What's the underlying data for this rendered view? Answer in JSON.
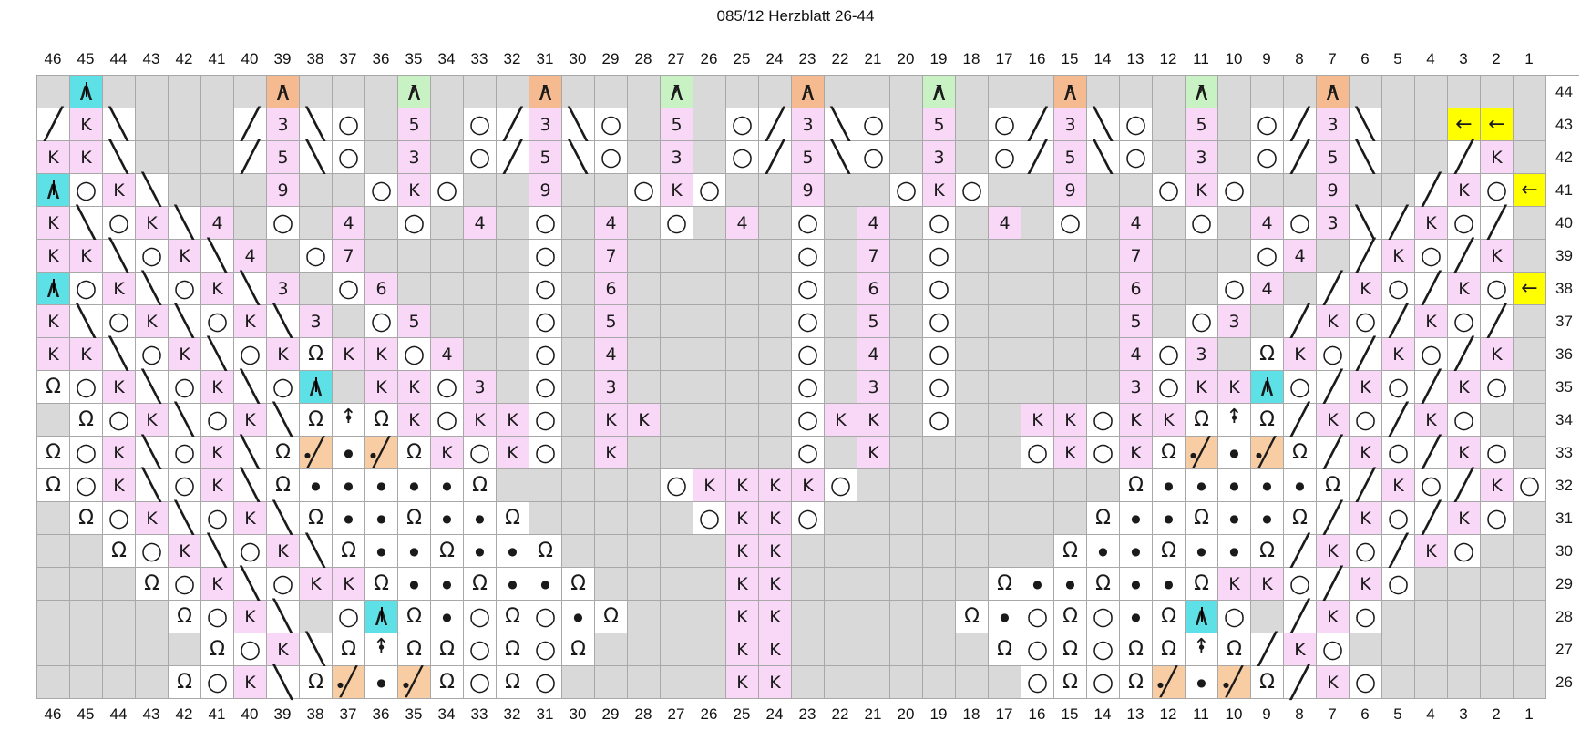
{
  "title": "085/12 Herzblatt 26-44",
  "chart": {
    "columns": [
      46,
      45,
      44,
      43,
      42,
      41,
      40,
      39,
      38,
      37,
      36,
      35,
      34,
      33,
      32,
      31,
      30,
      29,
      28,
      27,
      26,
      25,
      24,
      23,
      22,
      21,
      20,
      19,
      18,
      17,
      16,
      15,
      14,
      13,
      12,
      11,
      10,
      9,
      8,
      7,
      6,
      5,
      4,
      3,
      2,
      1
    ],
    "row_numbers": [
      44,
      43,
      42,
      41,
      40,
      39,
      38,
      37,
      36,
      35,
      34,
      33,
      32,
      31,
      30,
      29,
      28,
      27,
      26
    ],
    "colors": {
      "no_stitch_gray": "#d9d9d9",
      "stitch_pink": "#f8d8f6",
      "decrease_cyan": "#5ee1e6",
      "gather_peach": "#f5ba90",
      "combo_peach": "#f8cda4",
      "gather_green": "#c8f2c4",
      "marker_yellow": "#ffff00",
      "grid_line": "#a8a8a8",
      "symbol_black": "#1a1a1a"
    },
    "symbols": {
      ".": {
        "name": "no-stitch",
        "glyph": "",
        "color": "no_stitch_gray"
      },
      "K": {
        "name": "knit",
        "glyph": "K",
        "color": "stitch_pink"
      },
      "f": {
        "name": "decrease-right-slash",
        "glyph": "╱",
        "color": "white"
      },
      "b": {
        "name": "decrease-left-slash",
        "glyph": "╲",
        "color": "white"
      },
      "O": {
        "name": "yarn-over",
        "glyph": "○",
        "color": "white"
      },
      "W": {
        "name": "knit-twisted-omega",
        "glyph": "Ω",
        "color": "white"
      },
      "D": {
        "name": "purl-dot",
        "glyph": "●",
        "color": "white"
      },
      "A": {
        "name": "centered-double-decrease",
        "glyph": "/|\\",
        "color": "decrease_cyan"
      },
      "U": {
        "name": "lifted-stitch-arrow-dot",
        "glyph": "↑•",
        "color": "white"
      },
      "S": {
        "name": "dot-slash-combo",
        "glyph": "•╱",
        "color": "combo_peach"
      },
      "G5": {
        "name": "gather-5-stitches",
        "glyph": "/5\\",
        "color": "gather_peach"
      },
      "G7": {
        "name": "gather-7-stitches",
        "glyph": "/7\\",
        "color": "gather_green"
      },
      "L": {
        "name": "repeat-arrow-left",
        "glyph": "←",
        "color": "marker_yellow"
      },
      "3": {
        "name": "make-3",
        "glyph": "3",
        "color": "stitch_pink"
      },
      "4": {
        "name": "make-4",
        "glyph": "4",
        "color": "stitch_pink"
      },
      "5": {
        "name": "make-5",
        "glyph": "5",
        "color": "stitch_pink"
      },
      "6": {
        "name": "make-6",
        "glyph": "6",
        "color": "stitch_pink"
      },
      "7": {
        "name": "make-7",
        "glyph": "7",
        "color": "stitch_pink"
      },
      "9": {
        "name": "make-9",
        "glyph": "9",
        "color": "stitch_pink"
      }
    },
    "rows": [
      {
        "num": 44,
        "cells": [
          ".",
          "A",
          ".",
          ".",
          ".",
          ".",
          ".",
          "G5",
          ".",
          ".",
          ".",
          "G7",
          ".",
          ".",
          ".",
          "G5",
          ".",
          ".",
          ".",
          "G7",
          ".",
          ".",
          ".",
          "G5",
          ".",
          ".",
          ".",
          "G7",
          ".",
          ".",
          ".",
          "G5",
          ".",
          ".",
          ".",
          "G7",
          ".",
          ".",
          ".",
          "G5",
          ".",
          ".",
          ".",
          ".",
          ".",
          "."
        ]
      },
      {
        "num": 43,
        "cells": [
          "f",
          "K",
          "b",
          ".",
          ".",
          ".",
          "f",
          "3",
          "b",
          "O",
          ".",
          "5",
          ".",
          "O",
          "f",
          "3",
          "b",
          "O",
          ".",
          "5",
          ".",
          "O",
          "f",
          "3",
          "b",
          "O",
          ".",
          "5",
          ".",
          "O",
          "f",
          "3",
          "b",
          "O",
          ".",
          "5",
          ".",
          "O",
          "f",
          "3",
          "b",
          ".",
          ".",
          "L",
          "L",
          "."
        ]
      },
      {
        "num": 42,
        "cells": [
          "K",
          "K",
          "b",
          ".",
          ".",
          ".",
          "f",
          "5",
          "b",
          "O",
          ".",
          "3",
          ".",
          "O",
          "f",
          "5",
          "b",
          "O",
          ".",
          "3",
          ".",
          "O",
          "f",
          "5",
          "b",
          "O",
          ".",
          "3",
          ".",
          "O",
          "f",
          "5",
          "b",
          "O",
          ".",
          "3",
          ".",
          "O",
          "f",
          "5",
          "b",
          ".",
          ".",
          "f",
          "K",
          "."
        ]
      },
      {
        "num": 41,
        "cells": [
          "A",
          "O",
          "K",
          "b",
          ".",
          ".",
          ".",
          "9",
          ".",
          ".",
          "O",
          "K",
          "O",
          ".",
          ".",
          "9",
          ".",
          ".",
          "O",
          "K",
          "O",
          ".",
          ".",
          "9",
          ".",
          ".",
          "O",
          "K",
          "O",
          ".",
          ".",
          "9",
          ".",
          ".",
          "O",
          "K",
          "O",
          ".",
          ".",
          "9",
          ".",
          ".",
          "f",
          "K",
          "O",
          "L"
        ]
      },
      {
        "num": 40,
        "cells": [
          "K",
          "b",
          "O",
          "K",
          "b",
          "4",
          ".",
          "O",
          ".",
          "4",
          ".",
          "O",
          ".",
          "4",
          ".",
          "O",
          ".",
          "4",
          ".",
          "O",
          ".",
          "4",
          ".",
          "O",
          ".",
          "4",
          ".",
          "O",
          ".",
          "4",
          ".",
          "O",
          ".",
          "4",
          ".",
          "O",
          ".",
          "4",
          "O",
          "3",
          "b",
          "f",
          "K",
          "O",
          "f",
          "."
        ]
      },
      {
        "num": 39,
        "cells": [
          "K",
          "K",
          "b",
          "O",
          "K",
          "b",
          "4",
          ".",
          "O",
          "7",
          ".",
          ".",
          ".",
          ".",
          ".",
          "O",
          ".",
          "7",
          ".",
          ".",
          ".",
          ".",
          ".",
          "O",
          ".",
          "7",
          ".",
          "O",
          ".",
          ".",
          ".",
          ".",
          ".",
          "7",
          ".",
          ".",
          ".",
          "O",
          "4",
          ".",
          "f",
          "K",
          "O",
          "f",
          "K",
          "."
        ]
      },
      {
        "num": 38,
        "cells": [
          "A",
          "O",
          "K",
          "b",
          "O",
          "K",
          "b",
          "3",
          ".",
          "O",
          "6",
          ".",
          ".",
          ".",
          ".",
          "O",
          ".",
          "6",
          ".",
          ".",
          ".",
          ".",
          ".",
          "O",
          ".",
          "6",
          ".",
          "O",
          ".",
          ".",
          ".",
          ".",
          ".",
          "6",
          ".",
          ".",
          "O",
          "4",
          ".",
          "f",
          "K",
          "O",
          "f",
          "K",
          "O",
          "L"
        ]
      },
      {
        "num": 37,
        "cells": [
          "K",
          "b",
          "O",
          "K",
          "b",
          "O",
          "K",
          "b",
          "3",
          ".",
          "O",
          "5",
          ".",
          ".",
          ".",
          "O",
          ".",
          "5",
          ".",
          ".",
          ".",
          ".",
          ".",
          "O",
          ".",
          "5",
          ".",
          "O",
          ".",
          ".",
          ".",
          ".",
          ".",
          "5",
          ".",
          "O",
          "3",
          ".",
          "f",
          "K",
          "O",
          "f",
          "K",
          "O",
          "f",
          "."
        ]
      },
      {
        "num": 36,
        "cells": [
          "K",
          "K",
          "b",
          "O",
          "K",
          "b",
          "O",
          "K",
          "W",
          "K",
          "K",
          "O",
          "4",
          ".",
          ".",
          "O",
          ".",
          "4",
          ".",
          ".",
          ".",
          ".",
          ".",
          "O",
          ".",
          "4",
          ".",
          "O",
          ".",
          ".",
          ".",
          ".",
          ".",
          "4",
          "O",
          "3",
          ".",
          "W",
          "K",
          "O",
          "f",
          "K",
          "O",
          "f",
          "K",
          "."
        ]
      },
      {
        "num": 35,
        "cells": [
          "W",
          "O",
          "K",
          "b",
          "O",
          "K",
          "b",
          "O",
          "A",
          ".",
          "K",
          "K",
          "O",
          "3",
          ".",
          "O",
          ".",
          "3",
          ".",
          ".",
          ".",
          ".",
          ".",
          "O",
          ".",
          "3",
          ".",
          "O",
          ".",
          ".",
          ".",
          ".",
          ".",
          "3",
          "O",
          "K",
          "K",
          "A",
          "O",
          "f",
          "K",
          "O",
          "f",
          "K",
          "O",
          "."
        ]
      },
      {
        "num": 34,
        "cells": [
          ".",
          "W",
          "O",
          "K",
          "b",
          "O",
          "K",
          "b",
          "W",
          "U",
          "W",
          "K",
          "O",
          "K",
          "K",
          "O",
          ".",
          "K",
          "K",
          ".",
          ".",
          ".",
          ".",
          "O",
          "K",
          "K",
          ".",
          "O",
          ".",
          ".",
          "K",
          "K",
          "O",
          "K",
          "K",
          "W",
          "U",
          "W",
          "f",
          "K",
          "O",
          "f",
          "K",
          "O",
          ".",
          "."
        ]
      },
      {
        "num": 33,
        "cells": [
          "W",
          "O",
          "K",
          "b",
          "O",
          "K",
          "b",
          "W",
          "S",
          "D",
          "S",
          "W",
          "K",
          "O",
          "K",
          "O",
          ".",
          "K",
          ".",
          ".",
          ".",
          ".",
          ".",
          "O",
          ".",
          "K",
          ".",
          ".",
          ".",
          ".",
          "O",
          "K",
          "O",
          "K",
          "W",
          "S",
          "D",
          "S",
          "W",
          "f",
          "K",
          "O",
          "f",
          "K",
          "O",
          "."
        ]
      },
      {
        "num": 32,
        "cells": [
          "W",
          "O",
          "K",
          "b",
          "O",
          "K",
          "b",
          "W",
          "D",
          "D",
          "D",
          "D",
          "D",
          "W",
          ".",
          ".",
          ".",
          ".",
          ".",
          "O",
          "K",
          "K",
          "K",
          "K",
          "O",
          ".",
          ".",
          ".",
          ".",
          ".",
          ".",
          ".",
          ".",
          "W",
          "D",
          "D",
          "D",
          "D",
          "D",
          "W",
          "f",
          "K",
          "O",
          "f",
          "K",
          "O"
        ]
      },
      {
        "num": 31,
        "cells": [
          ".",
          "W",
          "O",
          "K",
          "b",
          "O",
          "K",
          "b",
          "W",
          "D",
          "D",
          "W",
          "D",
          "D",
          "W",
          ".",
          ".",
          ".",
          ".",
          ".",
          "O",
          "K",
          "K",
          "O",
          ".",
          ".",
          ".",
          ".",
          ".",
          ".",
          ".",
          ".",
          "W",
          "D",
          "D",
          "W",
          "D",
          "D",
          "W",
          "f",
          "K",
          "O",
          "f",
          "K",
          "O",
          "."
        ]
      },
      {
        "num": 30,
        "cells": [
          ".",
          ".",
          "W",
          "O",
          "K",
          "b",
          "O",
          "K",
          "b",
          "W",
          "D",
          "D",
          "W",
          "D",
          "D",
          "W",
          ".",
          ".",
          ".",
          ".",
          ".",
          "K",
          "K",
          ".",
          ".",
          ".",
          ".",
          ".",
          ".",
          ".",
          ".",
          "W",
          "D",
          "D",
          "W",
          "D",
          "D",
          "W",
          "f",
          "K",
          "O",
          "f",
          "K",
          "O",
          ".",
          "."
        ]
      },
      {
        "num": 29,
        "cells": [
          ".",
          ".",
          ".",
          "W",
          "O",
          "K",
          "b",
          "O",
          "K",
          "K",
          "W",
          "D",
          "D",
          "W",
          "D",
          "D",
          "W",
          ".",
          ".",
          ".",
          ".",
          "K",
          "K",
          ".",
          ".",
          ".",
          ".",
          ".",
          ".",
          "W",
          "D",
          "D",
          "W",
          "D",
          "D",
          "W",
          "K",
          "K",
          "O",
          "f",
          "K",
          "O",
          ".",
          ".",
          ".",
          "."
        ]
      },
      {
        "num": 28,
        "cells": [
          ".",
          ".",
          ".",
          ".",
          "W",
          "O",
          "K",
          "b",
          ".",
          "O",
          "A",
          "W",
          "D",
          "O",
          "W",
          "O",
          "D",
          "W",
          ".",
          ".",
          ".",
          "K",
          "K",
          ".",
          ".",
          ".",
          ".",
          ".",
          "W",
          "D",
          "O",
          "W",
          "O",
          "D",
          "W",
          "A",
          "O",
          ".",
          "f",
          "K",
          "O",
          ".",
          ".",
          ".",
          ".",
          "."
        ]
      },
      {
        "num": 27,
        "cells": [
          ".",
          ".",
          ".",
          ".",
          ".",
          "W",
          "O",
          "K",
          "b",
          "W",
          "U",
          "W",
          "W",
          "O",
          "W",
          "O",
          "W",
          ".",
          ".",
          ".",
          ".",
          "K",
          "K",
          ".",
          ".",
          ".",
          ".",
          ".",
          ".",
          "W",
          "O",
          "W",
          "O",
          "W",
          "W",
          "U",
          "W",
          "f",
          "K",
          "O",
          ".",
          ".",
          ".",
          ".",
          ".",
          "."
        ]
      },
      {
        "num": 26,
        "cells": [
          ".",
          ".",
          ".",
          ".",
          "W",
          "O",
          "K",
          "b",
          "W",
          "S",
          "D",
          "S",
          "W",
          "O",
          "W",
          "O",
          ".",
          ".",
          ".",
          ".",
          ".",
          "K",
          "K",
          ".",
          ".",
          ".",
          ".",
          ".",
          ".",
          ".",
          "O",
          "W",
          "O",
          "W",
          "S",
          "D",
          "S",
          "W",
          "f",
          "K",
          "O",
          ".",
          ".",
          ".",
          ".",
          "."
        ]
      }
    ]
  }
}
